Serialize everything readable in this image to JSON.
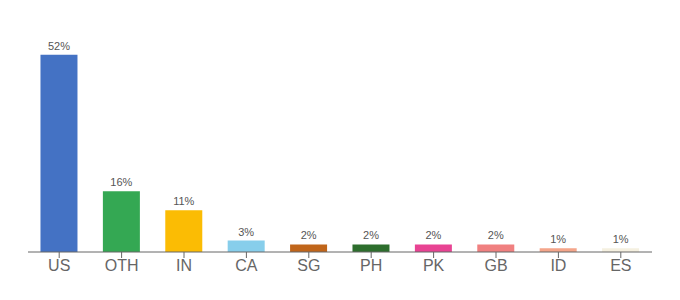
{
  "chart_data": {
    "type": "bar",
    "categories": [
      "US",
      "OTH",
      "IN",
      "CA",
      "SG",
      "PH",
      "PK",
      "GB",
      "ID",
      "ES"
    ],
    "values": [
      52,
      16,
      11,
      3,
      2,
      2,
      2,
      2,
      1,
      1
    ],
    "value_labels": [
      "52%",
      "16%",
      "11%",
      "3%",
      "2%",
      "2%",
      "2%",
      "2%",
      "1%",
      "1%"
    ],
    "data_labels": true,
    "colors": [
      "#4472c4",
      "#34a853",
      "#fbbc04",
      "#87ceeb",
      "#c0651a",
      "#2d6e2d",
      "#e84393",
      "#f08080",
      "#f4a58a",
      "#f5f0e0"
    ],
    "ylim": [
      0,
      58
    ],
    "tick_labels": "x",
    "grid": false
  }
}
